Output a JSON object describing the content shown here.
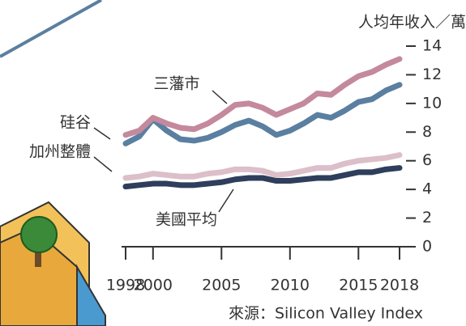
{
  "chart_data": {
    "type": "line",
    "y_label": "人均年收入／萬",
    "source": "來源：Silicon Valley Index",
    "x": [
      1998,
      1999,
      2000,
      2001,
      2002,
      2003,
      2004,
      2005,
      2006,
      2007,
      2008,
      2009,
      2010,
      2011,
      2012,
      2013,
      2014,
      2015,
      2016,
      2017,
      2018
    ],
    "xlim": [
      1998,
      2018
    ],
    "xticks": [
      1998,
      2000,
      2005,
      2010,
      2015,
      2018
    ],
    "ylim": [
      0,
      14
    ],
    "yticks": [
      0,
      2,
      4,
      6,
      8,
      10,
      12,
      14
    ],
    "series": [
      {
        "name": "三藩市",
        "color": "#c4899c",
        "values": [
          7.8,
          8.1,
          9.0,
          8.6,
          8.3,
          8.2,
          8.6,
          9.2,
          9.9,
          10.0,
          9.7,
          9.2,
          9.6,
          10.0,
          10.7,
          10.6,
          11.3,
          11.9,
          12.2,
          12.7,
          13.1
        ]
      },
      {
        "name": "硅谷",
        "color": "#5a7fa0",
        "values": [
          7.2,
          7.7,
          8.9,
          8.1,
          7.5,
          7.4,
          7.6,
          8.0,
          8.5,
          8.8,
          8.4,
          7.8,
          8.1,
          8.6,
          9.2,
          9.0,
          9.5,
          10.1,
          10.3,
          10.9,
          11.3
        ]
      },
      {
        "name": "加州整體",
        "color": "#dcbfca",
        "values": [
          4.8,
          4.9,
          5.1,
          5.0,
          4.9,
          4.9,
          5.1,
          5.2,
          5.4,
          5.4,
          5.3,
          5.0,
          5.1,
          5.3,
          5.5,
          5.5,
          5.8,
          6.0,
          6.1,
          6.2,
          6.4
        ]
      },
      {
        "name": "美國平均",
        "color": "#2e3e5c",
        "values": [
          4.2,
          4.3,
          4.4,
          4.4,
          4.3,
          4.3,
          4.4,
          4.5,
          4.7,
          4.8,
          4.8,
          4.6,
          4.6,
          4.7,
          4.8,
          4.8,
          5.0,
          5.2,
          5.2,
          5.4,
          5.5
        ]
      }
    ]
  }
}
